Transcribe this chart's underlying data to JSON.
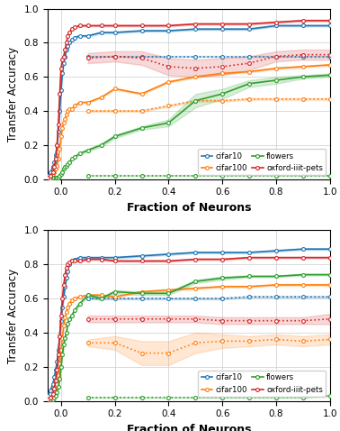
{
  "colors": {
    "cifar10": "#1f77b4",
    "cifar100": "#ff7f0e",
    "flowers": "#2ca02c",
    "oxford": "#d62728"
  },
  "top": {
    "solid": {
      "cifar10": {
        "x": [
          -0.05,
          -0.04,
          -0.03,
          -0.025,
          -0.02,
          -0.015,
          -0.01,
          -0.005,
          0.0,
          0.005,
          0.01,
          0.015,
          0.02,
          0.025,
          0.03,
          0.04,
          0.05,
          0.07,
          0.1,
          0.15,
          0.2,
          0.3,
          0.4,
          0.5,
          0.6,
          0.7,
          0.8,
          0.9,
          1.0
        ],
        "y": [
          0.02,
          0.04,
          0.07,
          0.1,
          0.14,
          0.2,
          0.28,
          0.4,
          0.52,
          0.62,
          0.68,
          0.72,
          0.76,
          0.78,
          0.8,
          0.82,
          0.83,
          0.84,
          0.84,
          0.86,
          0.86,
          0.87,
          0.87,
          0.88,
          0.88,
          0.88,
          0.9,
          0.9,
          0.9
        ],
        "yerr": [
          0.005,
          0.005,
          0.005,
          0.005,
          0.005,
          0.005,
          0.005,
          0.005,
          0.005,
          0.005,
          0.005,
          0.005,
          0.005,
          0.005,
          0.005,
          0.005,
          0.005,
          0.005,
          0.005,
          0.005,
          0.005,
          0.005,
          0.005,
          0.005,
          0.005,
          0.005,
          0.005,
          0.005,
          0.005
        ]
      },
      "cifar100": {
        "x": [
          -0.05,
          -0.04,
          -0.03,
          -0.025,
          -0.02,
          -0.015,
          -0.01,
          -0.005,
          0.0,
          0.005,
          0.01,
          0.015,
          0.02,
          0.025,
          0.03,
          0.04,
          0.05,
          0.07,
          0.1,
          0.15,
          0.2,
          0.3,
          0.4,
          0.5,
          0.6,
          0.7,
          0.8,
          0.9,
          1.0
        ],
        "y": [
          0.01,
          0.02,
          0.03,
          0.04,
          0.06,
          0.08,
          0.12,
          0.18,
          0.25,
          0.3,
          0.33,
          0.35,
          0.38,
          0.4,
          0.41,
          0.41,
          0.43,
          0.45,
          0.45,
          0.48,
          0.53,
          0.5,
          0.57,
          0.6,
          0.62,
          0.63,
          0.65,
          0.66,
          0.67
        ],
        "yerr": [
          0.005,
          0.005,
          0.005,
          0.005,
          0.005,
          0.005,
          0.005,
          0.005,
          0.005,
          0.005,
          0.005,
          0.005,
          0.005,
          0.005,
          0.005,
          0.005,
          0.005,
          0.005,
          0.005,
          0.005,
          0.005,
          0.005,
          0.005,
          0.005,
          0.005,
          0.005,
          0.005,
          0.005,
          0.005
        ]
      },
      "flowers": {
        "x": [
          -0.05,
          -0.04,
          -0.03,
          -0.025,
          -0.02,
          -0.015,
          -0.01,
          -0.005,
          0.0,
          0.005,
          0.01,
          0.015,
          0.02,
          0.025,
          0.03,
          0.04,
          0.05,
          0.07,
          0.1,
          0.15,
          0.2,
          0.3,
          0.4,
          0.5,
          0.6,
          0.7,
          0.8,
          0.9,
          1.0
        ],
        "y": [
          0.005,
          0.005,
          0.005,
          0.01,
          0.01,
          0.01,
          0.01,
          0.02,
          0.03,
          0.04,
          0.06,
          0.07,
          0.08,
          0.09,
          0.1,
          0.12,
          0.13,
          0.15,
          0.17,
          0.2,
          0.25,
          0.3,
          0.33,
          0.46,
          0.5,
          0.56,
          0.58,
          0.6,
          0.61
        ],
        "yerr": [
          0.002,
          0.002,
          0.002,
          0.002,
          0.002,
          0.002,
          0.002,
          0.002,
          0.002,
          0.002,
          0.002,
          0.002,
          0.002,
          0.002,
          0.003,
          0.005,
          0.005,
          0.007,
          0.008,
          0.01,
          0.01,
          0.01,
          0.02,
          0.04,
          0.03,
          0.02,
          0.02,
          0.01,
          0.01
        ]
      },
      "oxford": {
        "x": [
          -0.05,
          -0.04,
          -0.03,
          -0.025,
          -0.02,
          -0.015,
          -0.01,
          -0.005,
          0.0,
          0.005,
          0.01,
          0.015,
          0.02,
          0.025,
          0.03,
          0.04,
          0.05,
          0.07,
          0.1,
          0.15,
          0.2,
          0.3,
          0.4,
          0.5,
          0.6,
          0.7,
          0.8,
          0.9,
          1.0
        ],
        "y": [
          0.01,
          0.02,
          0.04,
          0.07,
          0.12,
          0.2,
          0.32,
          0.5,
          0.65,
          0.7,
          0.72,
          0.76,
          0.8,
          0.84,
          0.86,
          0.88,
          0.89,
          0.9,
          0.9,
          0.9,
          0.9,
          0.9,
          0.9,
          0.91,
          0.91,
          0.91,
          0.92,
          0.93,
          0.93
        ],
        "yerr": [
          0.005,
          0.005,
          0.005,
          0.005,
          0.005,
          0.005,
          0.005,
          0.005,
          0.005,
          0.005,
          0.005,
          0.005,
          0.005,
          0.005,
          0.005,
          0.005,
          0.005,
          0.005,
          0.005,
          0.005,
          0.005,
          0.005,
          0.005,
          0.005,
          0.005,
          0.005,
          0.005,
          0.005,
          0.005
        ]
      }
    },
    "dotted": {
      "cifar10": {
        "x": [
          0.1,
          0.2,
          0.3,
          0.4,
          0.5,
          0.6,
          0.7,
          0.8,
          0.9,
          1.0
        ],
        "y": [
          0.72,
          0.72,
          0.72,
          0.72,
          0.72,
          0.72,
          0.72,
          0.72,
          0.72,
          0.72
        ],
        "yerr": [
          0.005,
          0.005,
          0.005,
          0.005,
          0.005,
          0.005,
          0.005,
          0.005,
          0.005,
          0.005
        ]
      },
      "cifar100": {
        "x": [
          0.1,
          0.2,
          0.3,
          0.4,
          0.5,
          0.6,
          0.7,
          0.8,
          0.9,
          1.0
        ],
        "y": [
          0.4,
          0.4,
          0.4,
          0.43,
          0.46,
          0.46,
          0.47,
          0.47,
          0.47,
          0.47
        ],
        "yerr": [
          0.005,
          0.005,
          0.005,
          0.005,
          0.005,
          0.005,
          0.005,
          0.005,
          0.005,
          0.005
        ]
      },
      "flowers": {
        "x": [
          0.1,
          0.2,
          0.3,
          0.4,
          0.5,
          0.6,
          0.7,
          0.8,
          0.9,
          1.0
        ],
        "y": [
          0.02,
          0.02,
          0.02,
          0.02,
          0.02,
          0.02,
          0.02,
          0.02,
          0.02,
          0.02
        ],
        "yerr": [
          0.003,
          0.003,
          0.003,
          0.003,
          0.003,
          0.003,
          0.003,
          0.003,
          0.003,
          0.003
        ]
      },
      "oxford": {
        "x": [
          0.1,
          0.2,
          0.3,
          0.4,
          0.5,
          0.6,
          0.7,
          0.8,
          0.9,
          1.0
        ],
        "y": [
          0.71,
          0.72,
          0.71,
          0.66,
          0.65,
          0.66,
          0.68,
          0.72,
          0.73,
          0.73
        ],
        "yerr": [
          0.03,
          0.03,
          0.04,
          0.05,
          0.05,
          0.05,
          0.04,
          0.03,
          0.03,
          0.03
        ]
      }
    }
  },
  "bottom": {
    "solid": {
      "cifar10": {
        "x": [
          -0.05,
          -0.04,
          -0.03,
          -0.025,
          -0.02,
          -0.015,
          -0.01,
          -0.005,
          0.0,
          0.005,
          0.01,
          0.015,
          0.02,
          0.025,
          0.03,
          0.04,
          0.05,
          0.07,
          0.1,
          0.15,
          0.2,
          0.3,
          0.4,
          0.5,
          0.6,
          0.7,
          0.8,
          0.9,
          1.0
        ],
        "y": [
          0.03,
          0.06,
          0.1,
          0.14,
          0.18,
          0.23,
          0.3,
          0.38,
          0.47,
          0.55,
          0.61,
          0.67,
          0.72,
          0.76,
          0.8,
          0.82,
          0.83,
          0.84,
          0.84,
          0.84,
          0.84,
          0.85,
          0.86,
          0.87,
          0.87,
          0.87,
          0.88,
          0.89,
          0.89
        ],
        "yerr": [
          0.005,
          0.005,
          0.005,
          0.005,
          0.005,
          0.005,
          0.005,
          0.005,
          0.005,
          0.005,
          0.005,
          0.005,
          0.005,
          0.005,
          0.005,
          0.005,
          0.005,
          0.005,
          0.005,
          0.005,
          0.005,
          0.005,
          0.005,
          0.005,
          0.005,
          0.005,
          0.005,
          0.005,
          0.005
        ]
      },
      "cifar100": {
        "x": [
          -0.05,
          -0.04,
          -0.03,
          -0.025,
          -0.02,
          -0.015,
          -0.01,
          -0.005,
          0.0,
          0.005,
          0.01,
          0.015,
          0.02,
          0.025,
          0.03,
          0.04,
          0.05,
          0.07,
          0.1,
          0.15,
          0.2,
          0.3,
          0.4,
          0.5,
          0.6,
          0.7,
          0.8,
          0.9,
          1.0
        ],
        "y": [
          0.01,
          0.02,
          0.03,
          0.05,
          0.07,
          0.1,
          0.15,
          0.22,
          0.3,
          0.37,
          0.44,
          0.49,
          0.52,
          0.55,
          0.57,
          0.59,
          0.6,
          0.61,
          0.62,
          0.62,
          0.61,
          0.64,
          0.65,
          0.66,
          0.67,
          0.67,
          0.68,
          0.68,
          0.68
        ],
        "yerr": [
          0.005,
          0.005,
          0.005,
          0.005,
          0.005,
          0.005,
          0.005,
          0.005,
          0.005,
          0.005,
          0.005,
          0.005,
          0.005,
          0.005,
          0.005,
          0.005,
          0.005,
          0.005,
          0.005,
          0.005,
          0.005,
          0.005,
          0.005,
          0.005,
          0.005,
          0.005,
          0.005,
          0.005,
          0.005
        ]
      },
      "flowers": {
        "x": [
          -0.05,
          -0.04,
          -0.03,
          -0.025,
          -0.02,
          -0.015,
          -0.01,
          -0.005,
          0.0,
          0.005,
          0.01,
          0.015,
          0.02,
          0.025,
          0.03,
          0.04,
          0.05,
          0.07,
          0.1,
          0.15,
          0.2,
          0.3,
          0.4,
          0.5,
          0.6,
          0.7,
          0.8,
          0.9,
          1.0
        ],
        "y": [
          0.005,
          0.01,
          0.01,
          0.02,
          0.03,
          0.05,
          0.08,
          0.13,
          0.2,
          0.27,
          0.33,
          0.37,
          0.4,
          0.45,
          0.48,
          0.5,
          0.53,
          0.57,
          0.62,
          0.6,
          0.64,
          0.63,
          0.63,
          0.7,
          0.72,
          0.73,
          0.73,
          0.74,
          0.74
        ],
        "yerr": [
          0.002,
          0.002,
          0.002,
          0.002,
          0.002,
          0.003,
          0.005,
          0.007,
          0.01,
          0.01,
          0.01,
          0.01,
          0.01,
          0.01,
          0.01,
          0.01,
          0.01,
          0.01,
          0.01,
          0.01,
          0.01,
          0.01,
          0.01,
          0.01,
          0.01,
          0.005,
          0.005,
          0.005,
          0.005
        ]
      },
      "oxford": {
        "x": [
          -0.05,
          -0.04,
          -0.03,
          -0.025,
          -0.02,
          -0.015,
          -0.01,
          -0.005,
          0.0,
          0.005,
          0.01,
          0.015,
          0.02,
          0.025,
          0.03,
          0.04,
          0.05,
          0.07,
          0.1,
          0.15,
          0.2,
          0.3,
          0.4,
          0.5,
          0.6,
          0.7,
          0.8,
          0.9,
          1.0
        ],
        "y": [
          0.01,
          0.02,
          0.04,
          0.07,
          0.12,
          0.18,
          0.27,
          0.38,
          0.5,
          0.6,
          0.68,
          0.74,
          0.78,
          0.8,
          0.81,
          0.82,
          0.82,
          0.82,
          0.83,
          0.83,
          0.82,
          0.82,
          0.82,
          0.83,
          0.83,
          0.84,
          0.84,
          0.84,
          0.84
        ],
        "yerr": [
          0.005,
          0.005,
          0.005,
          0.005,
          0.005,
          0.005,
          0.005,
          0.005,
          0.005,
          0.005,
          0.005,
          0.005,
          0.005,
          0.005,
          0.005,
          0.005,
          0.005,
          0.005,
          0.005,
          0.005,
          0.005,
          0.005,
          0.005,
          0.005,
          0.005,
          0.005,
          0.005,
          0.005,
          0.005
        ]
      }
    },
    "dotted": {
      "cifar10": {
        "x": [
          0.1,
          0.2,
          0.3,
          0.4,
          0.5,
          0.6,
          0.7,
          0.8,
          0.9,
          1.0
        ],
        "y": [
          0.6,
          0.6,
          0.6,
          0.6,
          0.6,
          0.6,
          0.61,
          0.61,
          0.61,
          0.61
        ],
        "yerr": [
          0.005,
          0.005,
          0.005,
          0.005,
          0.005,
          0.005,
          0.005,
          0.005,
          0.005,
          0.005
        ]
      },
      "cifar100": {
        "x": [
          0.1,
          0.2,
          0.3,
          0.4,
          0.5,
          0.6,
          0.7,
          0.8,
          0.9,
          1.0
        ],
        "y": [
          0.34,
          0.34,
          0.28,
          0.28,
          0.34,
          0.35,
          0.35,
          0.36,
          0.35,
          0.36
        ],
        "yerr": [
          0.02,
          0.04,
          0.07,
          0.07,
          0.06,
          0.04,
          0.03,
          0.03,
          0.03,
          0.03
        ]
      },
      "flowers": {
        "x": [
          0.1,
          0.2,
          0.3,
          0.4,
          0.5,
          0.6,
          0.7,
          0.8,
          0.9,
          1.0
        ],
        "y": [
          0.02,
          0.02,
          0.02,
          0.02,
          0.02,
          0.02,
          0.02,
          0.02,
          0.02,
          0.03
        ],
        "yerr": [
          0.003,
          0.003,
          0.003,
          0.003,
          0.003,
          0.003,
          0.003,
          0.003,
          0.003,
          0.003
        ]
      },
      "oxford": {
        "x": [
          0.1,
          0.2,
          0.3,
          0.4,
          0.5,
          0.6,
          0.7,
          0.8,
          0.9,
          1.0
        ],
        "y": [
          0.48,
          0.48,
          0.48,
          0.48,
          0.48,
          0.47,
          0.47,
          0.47,
          0.47,
          0.48
        ],
        "yerr": [
          0.02,
          0.02,
          0.02,
          0.02,
          0.02,
          0.02,
          0.02,
          0.02,
          0.02,
          0.03
        ]
      }
    }
  },
  "labels": {
    "cifar10": "cifar10",
    "cifar100": "cifar100",
    "flowers": "flowers",
    "oxford": "oxford-iiit-pets"
  },
  "xlabel": "Fraction of Neurons",
  "ylabel": "Transfer Accuracy",
  "xlim": [
    -0.05,
    1.0
  ],
  "ylim": [
    0.0,
    1.0
  ],
  "xticks": [
    0.0,
    0.2,
    0.4,
    0.6,
    0.8,
    1.0
  ],
  "yticks": [
    0.0,
    0.2,
    0.4,
    0.6,
    0.8,
    1.0
  ]
}
